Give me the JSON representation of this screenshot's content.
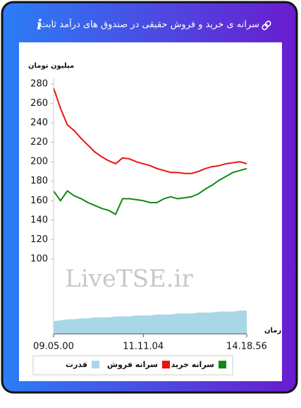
{
  "chart_data": {
    "type": "line",
    "title": "سرانه ی خرید و فروش حقیقی در صندوق های درآمد ثابت",
    "header_icon": "i",
    "y_label": "میلیون تومان",
    "x_label": "زمان",
    "watermark": "LiveTSE.ir",
    "categories": [
      "09.05.00",
      null,
      null,
      null,
      null,
      null,
      null,
      null,
      null,
      null,
      null,
      null,
      null,
      "11.11.04",
      null,
      null,
      null,
      null,
      null,
      null,
      null,
      null,
      null,
      null,
      null,
      null,
      null,
      null,
      "14.18.56"
    ],
    "series": [
      {
        "name": "سرانه خرید",
        "color": "#118811",
        "values": [
          170,
          160,
          170,
          165,
          162,
          158,
          155,
          152,
          150,
          146,
          162,
          162,
          161,
          160,
          158,
          158,
          162,
          164,
          162,
          163,
          164,
          167,
          172,
          176,
          181,
          185,
          189,
          191,
          193
        ]
      },
      {
        "name": "سرانه فروش",
        "color": "#ee1111",
        "values": [
          276,
          255,
          238,
          232,
          224,
          217,
          210,
          205,
          201,
          198,
          204,
          203,
          200,
          198,
          196,
          193,
          191,
          189,
          189,
          188,
          188,
          190,
          193,
          195,
          196,
          198,
          199,
          200,
          198
        ]
      },
      {
        "name": "قدرت",
        "color": "#a8d8e8",
        "area": true,
        "values": [
          36,
          37,
          38,
          38,
          39,
          39,
          40,
          40,
          40,
          41,
          41,
          41,
          42,
          42,
          42,
          43,
          43,
          43,
          44,
          44,
          44,
          45,
          45,
          45,
          46,
          46,
          46,
          47,
          47
        ]
      }
    ],
    "ylim": [
      23,
      280
    ],
    "yticks": [
      100,
      120,
      140,
      160,
      180,
      200,
      220,
      240,
      260,
      280
    ]
  }
}
